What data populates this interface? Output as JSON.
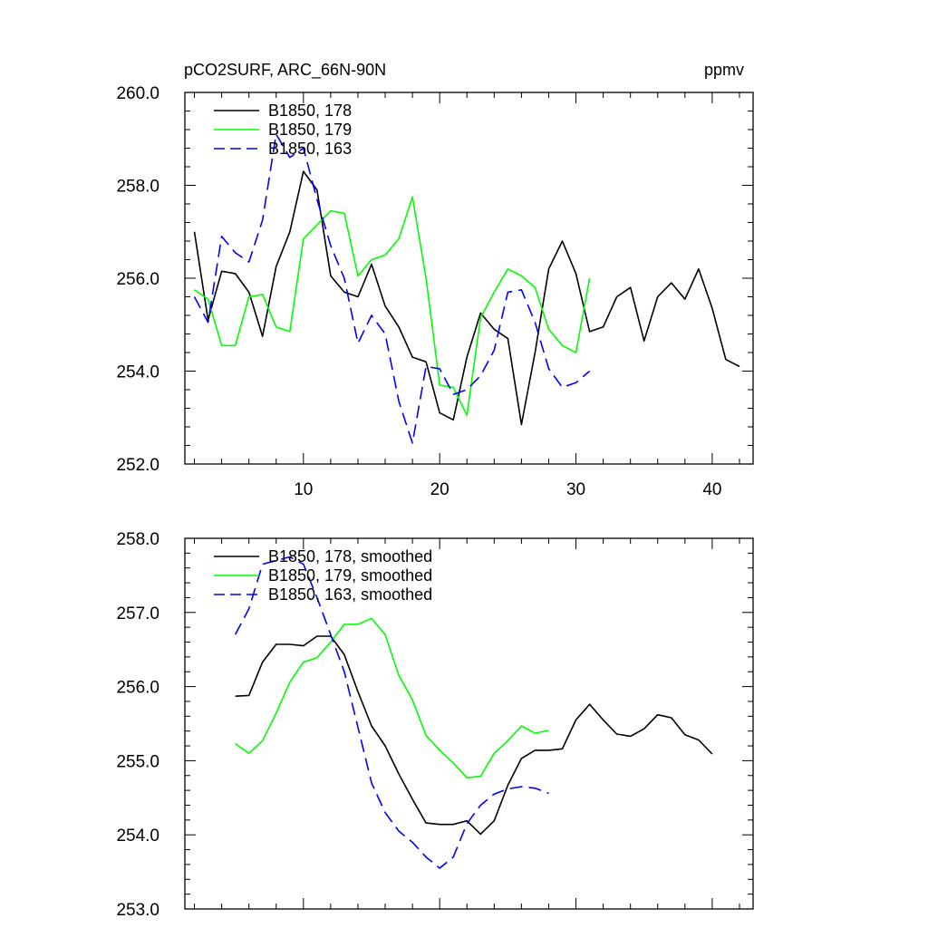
{
  "header": {
    "left": "pCO2SURF, ARC_66N-90N",
    "right": "ppmv"
  },
  "chart_data": [
    {
      "type": "line",
      "title": "pCO2SURF, ARC_66N-90N",
      "units": "ppmv",
      "xlim": [
        1.3,
        43
      ],
      "ylim": [
        252,
        260
      ],
      "xticks": [
        10,
        20,
        30,
        40
      ],
      "xtick_labels": [
        "10",
        "20",
        "30",
        "40"
      ],
      "yticks": [
        252,
        254,
        256,
        258,
        260
      ],
      "ytick_labels": [
        "252.0",
        "254.0",
        "256.0",
        "258.0",
        "260.0"
      ],
      "grid": false,
      "legend_position": "top-left",
      "series": [
        {
          "name": "B1850, 178",
          "color": "#000000",
          "dash": "solid",
          "x": [
            2,
            3,
            4,
            5,
            6,
            7,
            8,
            9,
            10,
            11,
            12,
            13,
            14,
            15,
            16,
            17,
            18,
            19,
            20,
            21,
            22,
            23,
            24,
            25,
            26,
            27,
            28,
            29,
            30,
            31,
            32,
            33,
            34,
            35,
            36,
            37,
            38,
            39,
            40,
            41,
            42
          ],
          "y": [
            257.0,
            255.1,
            256.15,
            256.1,
            255.7,
            254.75,
            256.25,
            257.0,
            258.3,
            257.9,
            256.05,
            255.7,
            255.6,
            256.3,
            255.4,
            254.95,
            254.3,
            254.2,
            253.1,
            252.95,
            254.3,
            255.25,
            254.9,
            254.7,
            252.85,
            254.4,
            256.2,
            256.8,
            256.1,
            254.85,
            254.95,
            255.6,
            255.8,
            254.65,
            255.6,
            255.9,
            255.55,
            256.2,
            255.35,
            254.25,
            254.1
          ]
        },
        {
          "name": "B1850, 179",
          "color": "#00ff00",
          "dash": "solid",
          "x": [
            2,
            3,
            4,
            5,
            6,
            7,
            8,
            9,
            10,
            11,
            12,
            13,
            14,
            15,
            16,
            17,
            18,
            19,
            20,
            21,
            22,
            23,
            24,
            25,
            26,
            27,
            28,
            29,
            30,
            31
          ],
          "y": [
            255.75,
            255.55,
            254.55,
            254.55,
            255.6,
            255.65,
            254.95,
            254.85,
            256.85,
            257.15,
            257.45,
            257.4,
            256.05,
            256.4,
            256.5,
            256.85,
            257.75,
            256.0,
            253.7,
            253.65,
            253.05,
            255.15,
            255.7,
            256.2,
            256.05,
            255.8,
            254.9,
            254.55,
            254.4,
            256.0
          ]
        },
        {
          "name": "B1850, 163",
          "color": "#0000ff",
          "dash": "dashed",
          "x": [
            2,
            3,
            4,
            5,
            6,
            7,
            8,
            9,
            10,
            11,
            12,
            13,
            14,
            15,
            16,
            17,
            18,
            19,
            20,
            21,
            22,
            23,
            24,
            25,
            26,
            27,
            28,
            29,
            30,
            31
          ],
          "y": [
            255.6,
            255.05,
            256.9,
            256.55,
            256.35,
            257.25,
            259.1,
            258.6,
            258.8,
            257.7,
            256.7,
            256.0,
            254.6,
            255.2,
            254.8,
            253.35,
            252.45,
            254.1,
            254.05,
            253.5,
            253.6,
            253.9,
            254.45,
            255.7,
            255.75,
            255.05,
            254.05,
            253.65,
            253.75,
            254.0
          ]
        }
      ]
    },
    {
      "type": "line",
      "xlim": [
        1.3,
        43
      ],
      "ylim": [
        253,
        258
      ],
      "xticks": [
        10,
        20,
        30,
        40
      ],
      "yticks": [
        253,
        254,
        255,
        256,
        257,
        258
      ],
      "ytick_labels": [
        "253.0",
        "254.0",
        "255.0",
        "256.0",
        "257.0",
        "258.0"
      ],
      "grid": false,
      "legend_position": "top-left",
      "series": [
        {
          "name": "B1850, 178, smoothed",
          "color": "#000000",
          "dash": "solid",
          "x": [
            5,
            6,
            7,
            8,
            9,
            10,
            11,
            12,
            13,
            14,
            15,
            16,
            17,
            18,
            19,
            20,
            21,
            22,
            23,
            24,
            25,
            26,
            27,
            28,
            29,
            30,
            31,
            32,
            33,
            34,
            35,
            36,
            37,
            38,
            39,
            40
          ],
          "y": [
            255.87,
            255.88,
            256.33,
            256.57,
            256.57,
            256.55,
            256.68,
            256.68,
            256.43,
            255.93,
            255.47,
            255.2,
            254.82,
            254.48,
            254.16,
            254.14,
            254.14,
            254.19,
            254.01,
            254.19,
            254.67,
            255.03,
            255.14,
            255.14,
            255.16,
            255.55,
            255.76,
            255.55,
            255.36,
            255.33,
            255.43,
            255.62,
            255.58,
            255.35,
            255.28,
            255.09
          ]
        },
        {
          "name": "B1850, 179, smoothed",
          "color": "#00ff00",
          "dash": "solid",
          "x": [
            5,
            6,
            7,
            8,
            9,
            10,
            11,
            12,
            13,
            14,
            15,
            16,
            17,
            18,
            19,
            20,
            21,
            22,
            23,
            24,
            25,
            26,
            27,
            28
          ],
          "y": [
            255.23,
            255.1,
            255.27,
            255.64,
            256.06,
            256.33,
            256.39,
            256.6,
            256.84,
            256.84,
            256.92,
            256.7,
            256.15,
            255.82,
            255.34,
            255.14,
            254.97,
            254.77,
            254.79,
            255.1,
            255.27,
            255.47,
            255.37,
            255.41
          ]
        },
        {
          "name": "B1850, 163, smoothed",
          "color": "#0000ff",
          "dash": "dashed",
          "x": [
            5,
            6,
            7,
            8,
            9,
            10,
            11,
            12,
            13,
            14,
            15,
            16,
            17,
            18,
            19,
            20,
            21,
            22,
            23,
            24,
            25,
            26,
            27,
            28
          ],
          "y": [
            256.7,
            257.05,
            257.65,
            257.7,
            257.75,
            257.65,
            257.2,
            256.7,
            256.2,
            255.45,
            254.7,
            254.3,
            254.05,
            253.9,
            253.7,
            253.55,
            253.7,
            254.15,
            254.4,
            254.55,
            254.62,
            254.65,
            254.63,
            254.56
          ]
        }
      ]
    }
  ]
}
